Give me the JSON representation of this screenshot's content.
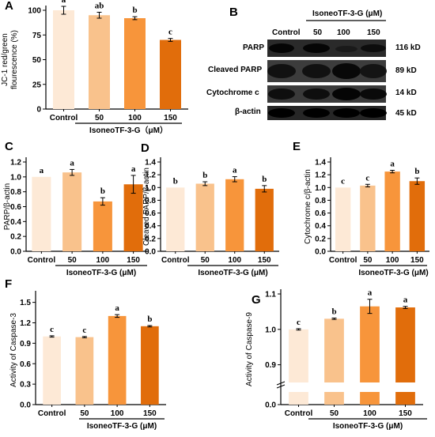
{
  "colors": [
    "#fde9d6",
    "#f9c28c",
    "#f7953b",
    "#e16d0b"
  ],
  "western_blot": {
    "letter": "B",
    "group_title": "IsoneoTF-3-G (μM)",
    "lanes": [
      "Control",
      "50",
      "100",
      "150"
    ],
    "rows": [
      {
        "protein": "PARP",
        "size": "116 kD"
      },
      {
        "protein": "Cleaved PARP",
        "size": "89 kD"
      },
      {
        "protein": "Cytochrome c",
        "size": "14 kD"
      },
      {
        "protein": "β-actin",
        "size": "45 kD"
      }
    ]
  },
  "chart_data": [
    {
      "panel": "A",
      "type": "bar",
      "categories": [
        "Control",
        "50",
        "100",
        "150"
      ],
      "values": [
        100,
        95,
        92,
        70
      ],
      "errors": [
        4,
        3,
        1.5,
        1.5
      ],
      "letters": [
        "a",
        "ab",
        "b",
        "c"
      ],
      "ylabel": "JC-1 red/green\nflourescence (%)",
      "xlabel": "IsoneoTF-3-G（μM）",
      "ylim": [
        0,
        100
      ],
      "yticks": [
        "0",
        "25",
        "50",
        "75",
        "100"
      ]
    },
    {
      "panel": "C",
      "type": "bar",
      "categories": [
        "Control",
        "50",
        "100",
        "150"
      ],
      "values": [
        1.0,
        1.06,
        0.67,
        0.9
      ],
      "errors": [
        0,
        0.04,
        0.05,
        0.12
      ],
      "letters": [
        "a",
        "a",
        "b",
        "a"
      ],
      "ylabel": "PARP/β-actin",
      "xlabel": "IsoneoTF-3-G (μM)",
      "ylim": [
        0.0,
        1.2
      ],
      "yticks": [
        "0.0",
        "0.2",
        "0.4",
        "0.6",
        "0.8",
        "1.0",
        "1.2"
      ]
    },
    {
      "panel": "D",
      "type": "bar",
      "categories": [
        "Control",
        "50",
        "100",
        "150"
      ],
      "values": [
        1.0,
        1.06,
        1.13,
        0.98
      ],
      "errors": [
        0,
        0.03,
        0.04,
        0.05
      ],
      "letters": [
        "b",
        "b",
        "a",
        "b"
      ],
      "ylabel": "Cleaved PARP/β-actin",
      "xlabel": "IsoneoTF-3-G (μM)",
      "ylim": [
        0.0,
        1.4
      ],
      "yticks": [
        "0.0",
        "0.2",
        "0.4",
        "0.6",
        "0.8",
        "1.0",
        "1.2",
        "1.4"
      ]
    },
    {
      "panel": "E",
      "type": "bar",
      "categories": [
        "Control",
        "50",
        "100",
        "150"
      ],
      "values": [
        1.0,
        1.03,
        1.25,
        1.1
      ],
      "errors": [
        0,
        0.02,
        0.02,
        0.05
      ],
      "letters": [
        "c",
        "c",
        "a",
        "b"
      ],
      "ylabel": "Cytochrome c/β-actin",
      "xlabel": "IsoneoTF-3-G (μM)",
      "ylim": [
        0.0,
        1.4
      ],
      "yticks": [
        "0.0",
        "0.2",
        "0.4",
        "0.6",
        "0.8",
        "1.0",
        "1.2",
        "1.4"
      ]
    },
    {
      "panel": "F",
      "type": "bar",
      "categories": [
        "Control",
        "50",
        "100",
        "150"
      ],
      "values": [
        1.0,
        0.99,
        1.3,
        1.15
      ],
      "errors": [
        0.01,
        0.01,
        0.02,
        0.01
      ],
      "letters": [
        "c",
        "c",
        "a",
        "b"
      ],
      "ylabel": "Activity of Caspase-3",
      "xlabel": "IsoneoTF-3-G (μM)",
      "ylim": [
        0.0,
        1.6
      ],
      "yticks": [
        "0.0",
        "0.3",
        "0.6",
        "0.9",
        "1.2",
        "1.5"
      ]
    },
    {
      "panel": "G",
      "type": "bar",
      "categories": [
        "Control",
        "50",
        "100",
        "150"
      ],
      "values": [
        1.0,
        1.03,
        1.065,
        1.062
      ],
      "errors": [
        0.002,
        0.002,
        0.02,
        0.003
      ],
      "letters": [
        "c",
        "b",
        "a",
        "a"
      ],
      "ylabel": "Activity of Caspase-9",
      "xlabel": "IsoneoTF-3-G (μM)",
      "ylim": [
        0.85,
        1.1
      ],
      "axis_break": true,
      "yticks": [
        "0.0",
        "0.9",
        "1.0",
        "1.1"
      ]
    }
  ]
}
